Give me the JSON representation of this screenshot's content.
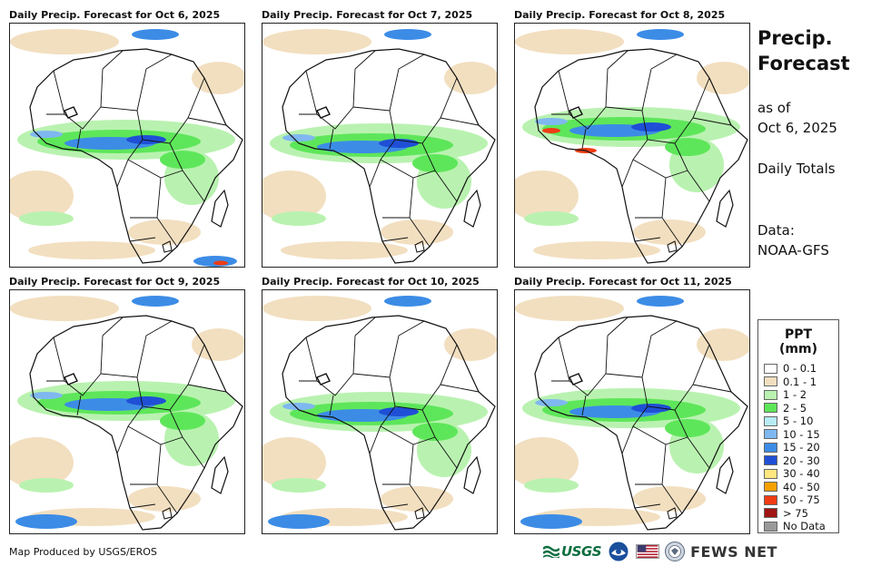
{
  "panels": [
    {
      "title": "Daily Precip. Forecast for Oct 6, 2025"
    },
    {
      "title": "Daily Precip. Forecast for Oct 7, 2025"
    },
    {
      "title": "Daily Precip. Forecast for Oct 8, 2025"
    },
    {
      "title": "Daily Precip. Forecast for Oct 9, 2025"
    },
    {
      "title": "Daily Precip. Forecast for Oct 10, 2025"
    },
    {
      "title": "Daily Precip. Forecast for Oct 11, 2025"
    }
  ],
  "side": {
    "title_line1": "Precip.",
    "title_line2": "Forecast",
    "asof_line1": "as of",
    "asof_line2": "Oct 6, 2025",
    "totals": "Daily Totals",
    "data_label": "Data:",
    "data_source": "NOAA-GFS"
  },
  "legend": {
    "title": "PPT (mm)",
    "items": [
      {
        "label": "0 - 0.1",
        "color": "#ffffff"
      },
      {
        "label": "0.1 - 1",
        "color": "#f2dfc0"
      },
      {
        "label": "1 - 2",
        "color": "#b9f2b0"
      },
      {
        "label": "2 - 5",
        "color": "#5ee65a"
      },
      {
        "label": "5 - 10",
        "color": "#b7ecf5"
      },
      {
        "label": "10 - 15",
        "color": "#7fb8f0"
      },
      {
        "label": "15 - 20",
        "color": "#3c8ce6"
      },
      {
        "label": "20 - 30",
        "color": "#1f4fd6"
      },
      {
        "label": "30 - 40",
        "color": "#ffe680"
      },
      {
        "label": "40 - 50",
        "color": "#f5a000"
      },
      {
        "label": "50 - 75",
        "color": "#f03c14"
      },
      {
        "label": "> 75",
        "color": "#a01414"
      },
      {
        "label": "No Data",
        "color": "#999999"
      }
    ]
  },
  "footer": {
    "credit": "Map Produced by USGS/EROS",
    "usgs": "USGS",
    "fews": "FEWS NET"
  }
}
